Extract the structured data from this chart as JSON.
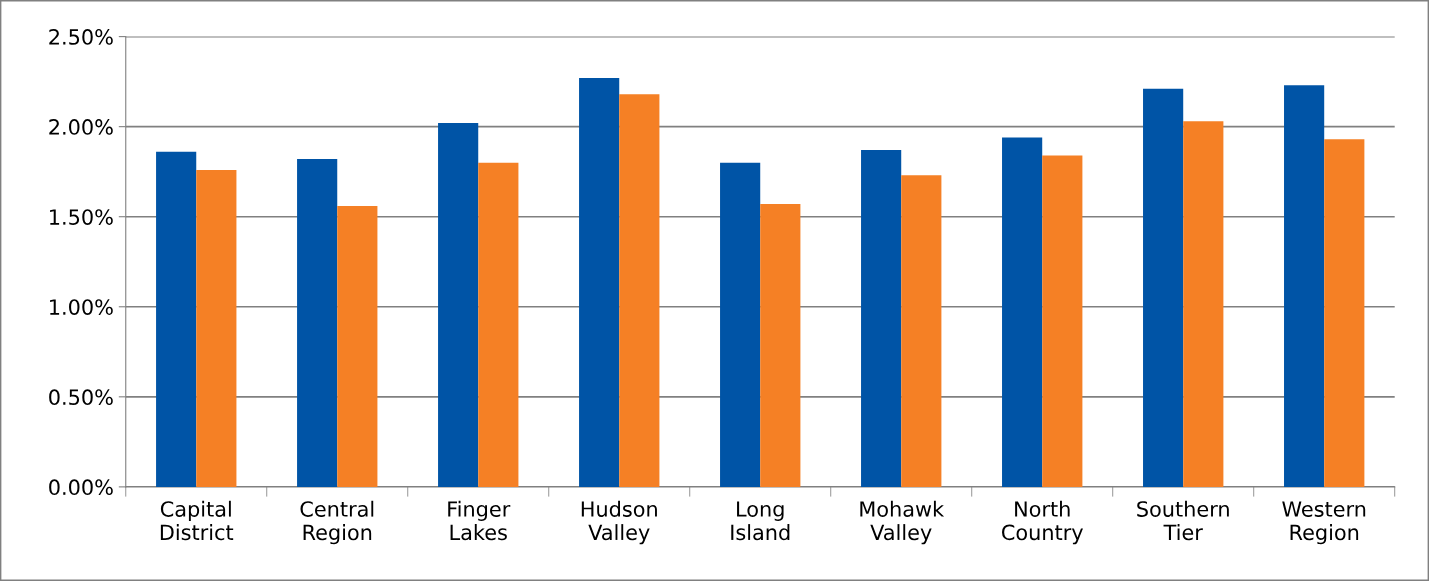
{
  "chart_data": {
    "type": "bar",
    "categories": [
      "Capital\nDistrict",
      "Central\nRegion",
      "Finger\nLakes",
      "Hudson\nValley",
      "Long\nIsland",
      "Mohawk\nValley",
      "North\nCountry",
      "Southern\nTier",
      "Western\nRegion"
    ],
    "series": [
      {
        "color": "#0054a6",
        "values": [
          1.86,
          1.82,
          2.02,
          2.27,
          1.8,
          1.87,
          1.94,
          2.21,
          2.23
        ]
      },
      {
        "color": "#f58025",
        "values": [
          1.76,
          1.56,
          1.8,
          2.18,
          1.57,
          1.73,
          1.84,
          2.03,
          1.93
        ]
      }
    ],
    "ylim": [
      0,
      2.5
    ],
    "yticks": [
      {
        "value": 0,
        "label": "0.00%"
      },
      {
        "value": 0.5,
        "label": "0.50%"
      },
      {
        "value": 1.0,
        "label": "1.00%"
      },
      {
        "value": 1.5,
        "label": "1.50%"
      },
      {
        "value": 2.0,
        "label": "2.00%"
      },
      {
        "value": 2.5,
        "label": "2.50%"
      }
    ],
    "grid": "y",
    "legend": false
  }
}
